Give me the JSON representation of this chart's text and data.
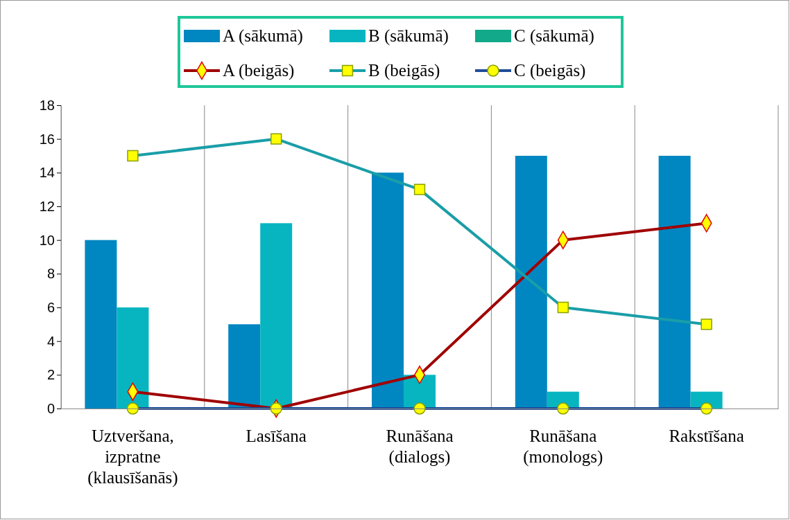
{
  "chart_data": {
    "type": "bar",
    "categories": [
      "Uztveršana, izpratne (klausīšanās)",
      "Lasīšana",
      "Runāšana (dialogs)",
      "Runāšana (monologs)",
      "Rakstīšana"
    ],
    "series": [
      {
        "name": "A (sākumā)",
        "color": "#0087c1",
        "values": [
          10,
          5,
          14,
          15,
          15
        ]
      },
      {
        "name": "B (sākumā)",
        "color": "#07b5c1",
        "values": [
          6,
          11,
          2,
          1,
          1
        ]
      },
      {
        "name": "C (sākumā)",
        "color": "#12a98a",
        "values": [
          0,
          0,
          0,
          0,
          0
        ]
      },
      {
        "name": "A (beigās)",
        "type": "line",
        "color": "#a00000",
        "marker": "diamond",
        "values": [
          1,
          0,
          2,
          10,
          11
        ]
      },
      {
        "name": "B (beigās)",
        "type": "line",
        "color": "#1a9ea8",
        "marker": "square",
        "values": [
          15,
          16,
          13,
          6,
          5
        ]
      },
      {
        "name": "C (beigās)",
        "type": "line",
        "color": "#1f4e99",
        "marker": "circle",
        "values": [
          0,
          0,
          0,
          0,
          0
        ]
      }
    ],
    "ylim": [
      0,
      18
    ],
    "yticks": [
      0,
      2,
      4,
      6,
      8,
      10,
      12,
      14,
      16,
      18
    ],
    "grid": "x",
    "legend": "top"
  }
}
